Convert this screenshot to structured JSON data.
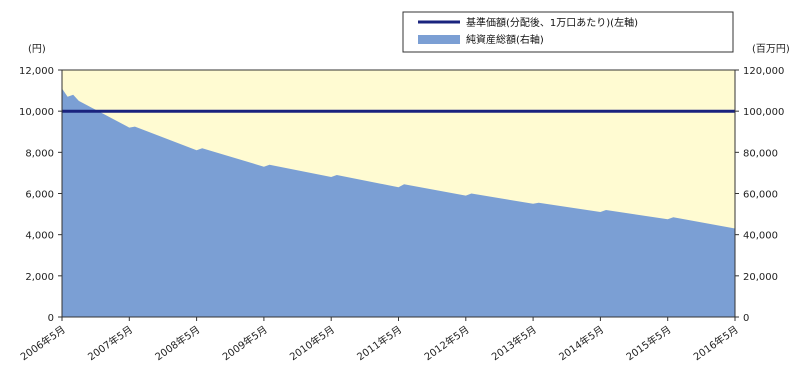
{
  "chart_data": {
    "type": "area",
    "title": "",
    "units": {
      "left": "(円)",
      "right": "(百万円)"
    },
    "legend": {
      "placement": "top-right",
      "items": [
        {
          "name": "基準価額(分配後、1万口あたり)(左軸)",
          "style": "line",
          "color": "#1a237e"
        },
        {
          "name": "純資産総額(右軸)",
          "style": "area",
          "color": "#7b9fd4"
        }
      ]
    },
    "x_tick_labels": [
      "2006年5月",
      "2007年5月",
      "2008年5月",
      "2009年5月",
      "2010年5月",
      "2011年5月",
      "2012年5月",
      "2013年5月",
      "2014年5月",
      "2015年5月",
      "2016年5月"
    ],
    "y_left": {
      "range": [
        0,
        12000
      ],
      "ticks": [
        "0",
        "2,000",
        "4,000",
        "6,000",
        "8,000",
        "10,000",
        "12,000"
      ]
    },
    "y_right": {
      "range": [
        0,
        120000
      ],
      "ticks": [
        "0",
        "20,000",
        "40,000",
        "60,000",
        "80,000",
        "100,000",
        "120,000"
      ]
    },
    "background_color": "#fffbd2",
    "series": [
      {
        "name": "基準価額(分配後、1万口あたり)(左軸)",
        "axis": "left",
        "type": "line",
        "color": "#1a237e",
        "x": [
          "2006年5月",
          "2016年5月"
        ],
        "values": [
          10000,
          10000
        ]
      },
      {
        "name": "純資産総額(右軸)",
        "axis": "right",
        "type": "area",
        "color": "#7b9fd4",
        "x": [
          "2006年5月",
          "2006年6月",
          "2006年7月",
          "2006年8月",
          "2007年5月",
          "2007年6月",
          "2008年5月",
          "2008年6月",
          "2009年5月",
          "2009年6月",
          "2010年5月",
          "2010年6月",
          "2011年5月",
          "2011年6月",
          "2012年5月",
          "2012年6月",
          "2013年5月",
          "2013年6月",
          "2014年5月",
          "2014年6月",
          "2015年5月",
          "2015年6月",
          "2016年5月"
        ],
        "values": [
          111000,
          107000,
          108000,
          105000,
          92000,
          92500,
          81000,
          82000,
          73000,
          74000,
          68000,
          69000,
          63000,
          64500,
          59000,
          60000,
          55000,
          55500,
          51000,
          52000,
          47500,
          48500,
          43000
        ]
      }
    ]
  }
}
